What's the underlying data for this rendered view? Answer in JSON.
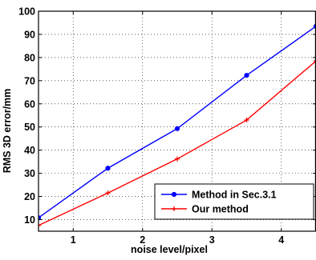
{
  "chart_data": {
    "type": "line",
    "title": "",
    "xlabel": "noise level/pixel",
    "ylabel": "RMS 3D error/mm",
    "xlim": [
      0.5,
      4.5
    ],
    "ylim": [
      5,
      100
    ],
    "xticks": [
      1,
      2,
      3,
      4
    ],
    "yticks": [
      10,
      20,
      30,
      40,
      50,
      60,
      70,
      80,
      90,
      100
    ],
    "grid": true,
    "grid_style": "dotted",
    "legend_position": "lower-right",
    "series": [
      {
        "name": "Method in Sec.3.1",
        "color": "#0000ff",
        "marker": "circle",
        "x": [
          0.5,
          1.5,
          2.5,
          3.5,
          4.5
        ],
        "y": [
          10.8,
          32.2,
          49.3,
          72.3,
          93.5
        ]
      },
      {
        "name": "Our method",
        "color": "#ff0000",
        "marker": "plus",
        "x": [
          0.5,
          1.5,
          2.5,
          3.5,
          4.5
        ],
        "y": [
          7.5,
          21.5,
          36.2,
          53.0,
          78.5
        ]
      }
    ]
  }
}
